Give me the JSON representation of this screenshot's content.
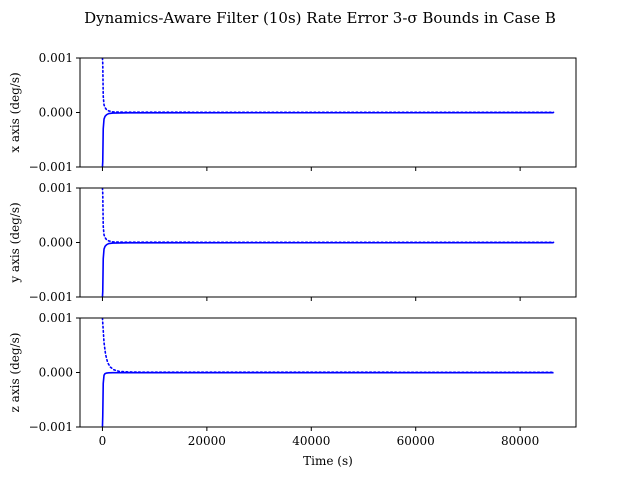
{
  "chart_data": {
    "type": "line",
    "title": "Dynamics-Aware Filter (10s) Rate Error 3-σ Bounds in Case B",
    "xlabel": "Time (s)",
    "x_ticks": [
      0,
      20000,
      40000,
      60000,
      80000
    ],
    "x_tick_labels": [
      "0",
      "20000",
      "40000",
      "60000",
      "80000"
    ],
    "xlim": [
      -4300,
      90700
    ],
    "grid": false,
    "color": "#0000ff",
    "panels": [
      {
        "ylabel": "x axis (deg/s)",
        "ylim": [
          -0.001,
          0.001
        ],
        "y_ticks": [
          -0.001,
          0.0,
          0.001
        ],
        "y_tick_labels": [
          "−0.001",
          "0.000",
          "0.001"
        ],
        "series": [
          {
            "style": "solid",
            "x": [
              0,
              60,
              150,
              300,
              500,
              800,
              1200,
              2000,
              5000,
              86400
            ],
            "y": [
              -0.001,
              -0.0009,
              -0.0003,
              -0.00012,
              -7e-05,
              -4e-05,
              -2e-05,
              -1e-05,
              -5e-06,
              -4e-06
            ]
          },
          {
            "style": "dotted",
            "x": [
              0,
              60,
              150,
              300,
              500,
              800,
              1200,
              2000,
              5000,
              86400
            ],
            "y": [
              0.001,
              0.0009,
              0.0003,
              0.00014,
              9e-05,
              5e-05,
              3e-05,
              1e-05,
              5e-06,
              4e-06
            ]
          }
        ]
      },
      {
        "ylabel": "y axis (deg/s)",
        "ylim": [
          -0.001,
          0.001
        ],
        "y_ticks": [
          -0.001,
          0.0,
          0.001
        ],
        "y_tick_labels": [
          "−0.001",
          "0.000",
          "0.001"
        ],
        "series": [
          {
            "style": "solid",
            "x": [
              0,
              60,
              150,
              300,
              500,
              800,
              1200,
              2000,
              5000,
              86400
            ],
            "y": [
              -0.001,
              -0.0009,
              -0.0003,
              -0.00012,
              -7e-05,
              -4e-05,
              -2e-05,
              -1e-05,
              -5e-06,
              -4e-06
            ]
          },
          {
            "style": "dotted",
            "x": [
              0,
              60,
              150,
              300,
              500,
              800,
              1200,
              2000,
              5000,
              86400
            ],
            "y": [
              0.001,
              0.0009,
              0.0003,
              0.00014,
              9e-05,
              5e-05,
              3e-05,
              1e-05,
              5e-06,
              4e-06
            ]
          }
        ]
      },
      {
        "ylabel": "z axis (deg/s)",
        "ylim": [
          -0.001,
          0.001
        ],
        "y_ticks": [
          -0.001,
          0.0,
          0.001
        ],
        "y_tick_labels": [
          "−0.001",
          "0.000",
          "0.001"
        ],
        "series": [
          {
            "style": "solid",
            "x": [
              0,
              60,
              150,
              300,
              500,
              800,
              1200,
              2000,
              5000,
              86400
            ],
            "y": [
              -0.001,
              -0.0008,
              -0.0002,
              -5e-05,
              -2e-05,
              -1e-05,
              -5e-06,
              -4e-06,
              -4e-06,
              -4e-06
            ]
          },
          {
            "style": "dotted",
            "x": [
              0,
              100,
              300,
              600,
              1000,
              1500,
              2200,
              3200,
              5000,
              8000,
              86400
            ],
            "y": [
              0.001,
              0.00085,
              0.00055,
              0.00033,
              0.00018,
              0.0001,
              5e-05,
              2e-05,
              1e-05,
              6e-06,
              4e-06
            ]
          }
        ]
      }
    ]
  }
}
